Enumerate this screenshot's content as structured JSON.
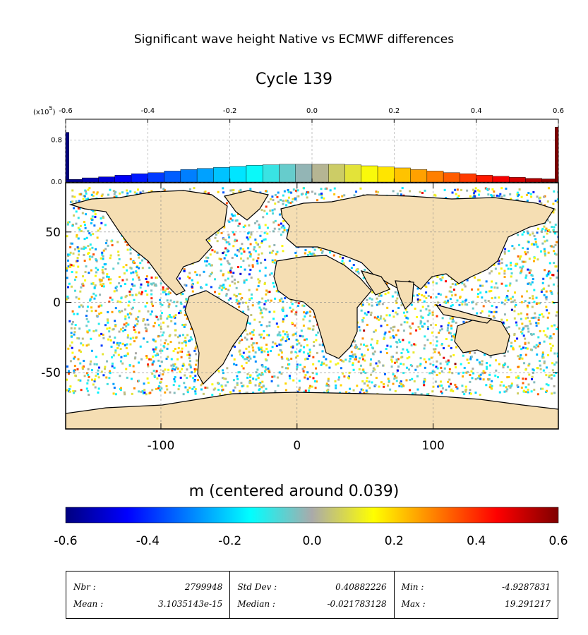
{
  "title": "Significant wave height Native vs ECMWF differences",
  "subtitle": "Cycle 139",
  "colorbar": {
    "title": "m (centered around 0.039)",
    "ticks": [
      "-0.6",
      "-0.4",
      "-0.2",
      "0.0",
      "0.2",
      "0.4",
      "0.6"
    ],
    "range": [
      -0.6,
      0.6
    ],
    "colors": [
      "#00007f",
      "#0000ff",
      "#007fff",
      "#00ffff",
      "#aaaaaa",
      "#ffff00",
      "#ff7f00",
      "#ff0000",
      "#7f0000"
    ]
  },
  "chart_data": [
    {
      "type": "bar",
      "name": "histogram",
      "x_tick_labels": [
        "-0.6",
        "-0.4",
        "-0.2",
        "0.0",
        "0.2",
        "0.4",
        "0.6"
      ],
      "y_tick_labels": [
        "0.0",
        "0.8"
      ],
      "y_multiplier_label": "(x10",
      "y_multiplier_exp": "5",
      "xlim": [
        -0.6,
        0.6
      ],
      "ylim": [
        0,
        1.2
      ],
      "x": [
        -0.6,
        -0.58,
        -0.54,
        -0.5,
        -0.46,
        -0.42,
        -0.38,
        -0.34,
        -0.3,
        -0.26,
        -0.22,
        -0.18,
        -0.14,
        -0.1,
        -0.06,
        -0.02,
        0.02,
        0.06,
        0.1,
        0.14,
        0.18,
        0.22,
        0.26,
        0.3,
        0.34,
        0.38,
        0.42,
        0.46,
        0.5,
        0.54,
        0.58,
        0.6
      ],
      "values": [
        0.95,
        0.05,
        0.08,
        0.1,
        0.13,
        0.16,
        0.18,
        0.21,
        0.24,
        0.26,
        0.28,
        0.3,
        0.32,
        0.33,
        0.34,
        0.34,
        0.34,
        0.34,
        0.33,
        0.31,
        0.29,
        0.27,
        0.24,
        0.21,
        0.18,
        0.16,
        0.13,
        0.11,
        0.09,
        0.07,
        0.06,
        1.05
      ]
    },
    {
      "type": "heatmap",
      "name": "global map",
      "x_tick_labels": [
        "-100",
        "0",
        "100"
      ],
      "y_tick_labels": [
        "50",
        "0",
        "-50"
      ],
      "xlim": [
        -170,
        192
      ],
      "ylim": [
        -90,
        85
      ],
      "value_range": [
        -0.6,
        0.6
      ]
    }
  ],
  "stats": {
    "columns": [
      {
        "rows": [
          {
            "label": "Nbr :",
            "value": "2799948"
          },
          {
            "label": "Mean :",
            "value": "3.1035143e-15"
          }
        ]
      },
      {
        "rows": [
          {
            "label": "Std Dev :",
            "value": "0.40882226"
          },
          {
            "label": "Median :",
            "value": "-0.021783128"
          }
        ]
      },
      {
        "rows": [
          {
            "label": "Min :",
            "value": "-4.9287831"
          },
          {
            "label": "Max :",
            "value": "19.291217"
          }
        ]
      }
    ]
  }
}
